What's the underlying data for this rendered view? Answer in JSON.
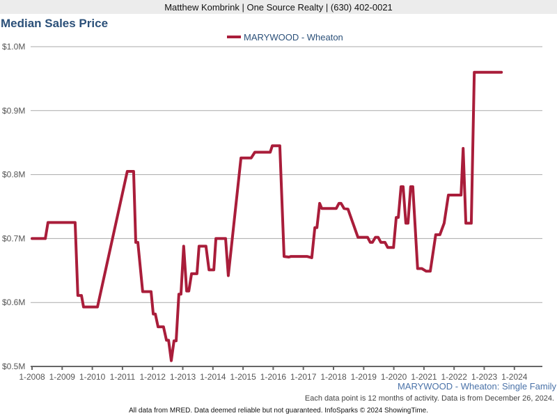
{
  "header": {
    "text": "Matthew Kombrink | One Source Realty | (630) 402-0021"
  },
  "chart_title": "Median Sales Price",
  "source_label": "MARYWOOD - Wheaton: Single Family",
  "note": "Each data point is 12 months of activity. Data is from December 26, 2024.",
  "footer": "All data from MRED. Data deemed reliable but not guaranteed. InfoSparks © 2024 ShowingTime.",
  "chart_data": {
    "type": "line",
    "title": "Median Sales Price",
    "xlabel": "",
    "ylabel": "",
    "ylim": [
      500000,
      1000000
    ],
    "xlim": [
      2008,
      2025.0
    ],
    "grid": true,
    "legend_position": "top-center",
    "y_ticks": [
      {
        "value": 500000,
        "label": "$0.5M"
      },
      {
        "value": 600000,
        "label": "$0.6M"
      },
      {
        "value": 700000,
        "label": "$0.7M"
      },
      {
        "value": 800000,
        "label": "$0.8M"
      },
      {
        "value": 900000,
        "label": "$0.9M"
      },
      {
        "value": 1000000,
        "label": "$1.0M"
      }
    ],
    "x_ticks": [
      {
        "value": 2008,
        "label": "1-2008"
      },
      {
        "value": 2009,
        "label": "1-2009"
      },
      {
        "value": 2010,
        "label": "1-2010"
      },
      {
        "value": 2011,
        "label": "1-2011"
      },
      {
        "value": 2012,
        "label": "1-2012"
      },
      {
        "value": 2013,
        "label": "1-2013"
      },
      {
        "value": 2014,
        "label": "1-2014"
      },
      {
        "value": 2015,
        "label": "1-2015"
      },
      {
        "value": 2016,
        "label": "1-2016"
      },
      {
        "value": 2017,
        "label": "1-2017"
      },
      {
        "value": 2018,
        "label": "1-2018"
      },
      {
        "value": 2019,
        "label": "1-2019"
      },
      {
        "value": 2020,
        "label": "1-2020"
      },
      {
        "value": 2021,
        "label": "1-2021"
      },
      {
        "value": 2022,
        "label": "1-2022"
      },
      {
        "value": 2023,
        "label": "1-2023"
      },
      {
        "value": 2024,
        "label": "1-2024"
      }
    ],
    "series": [
      {
        "name": "MARYWOOD - Wheaton",
        "color": "#a91d3a",
        "points": [
          [
            2008.0,
            700000
          ],
          [
            2008.44,
            700000
          ],
          [
            2008.53,
            725000
          ],
          [
            2009.43,
            725000
          ],
          [
            2009.52,
            611000
          ],
          [
            2009.64,
            611000
          ],
          [
            2009.71,
            593000
          ],
          [
            2010.17,
            593000
          ],
          [
            2011.16,
            805000
          ],
          [
            2011.37,
            805000
          ],
          [
            2011.44,
            694000
          ],
          [
            2011.51,
            694000
          ],
          [
            2011.67,
            617000
          ],
          [
            2011.95,
            617000
          ],
          [
            2012.02,
            582000
          ],
          [
            2012.09,
            582000
          ],
          [
            2012.18,
            562000
          ],
          [
            2012.36,
            562000
          ],
          [
            2012.46,
            541000
          ],
          [
            2012.53,
            541000
          ],
          [
            2012.62,
            509000
          ],
          [
            2012.71,
            540000
          ],
          [
            2012.78,
            540000
          ],
          [
            2012.87,
            613000
          ],
          [
            2012.94,
            613000
          ],
          [
            2013.03,
            688000
          ],
          [
            2013.13,
            618000
          ],
          [
            2013.2,
            618000
          ],
          [
            2013.29,
            645000
          ],
          [
            2013.47,
            645000
          ],
          [
            2013.54,
            688000
          ],
          [
            2013.77,
            688000
          ],
          [
            2013.87,
            651000
          ],
          [
            2014.03,
            651000
          ],
          [
            2014.1,
            700000
          ],
          [
            2014.42,
            700000
          ],
          [
            2014.51,
            642000
          ],
          [
            2014.93,
            826000
          ],
          [
            2015.27,
            826000
          ],
          [
            2015.39,
            835000
          ],
          [
            2015.9,
            835000
          ],
          [
            2015.97,
            845000
          ],
          [
            2016.22,
            845000
          ],
          [
            2016.36,
            672000
          ],
          [
            2016.52,
            671000
          ],
          [
            2016.59,
            672000
          ],
          [
            2017.12,
            672000
          ],
          [
            2017.28,
            670000
          ],
          [
            2017.38,
            717000
          ],
          [
            2017.45,
            717000
          ],
          [
            2017.54,
            755000
          ],
          [
            2017.61,
            747000
          ],
          [
            2018.09,
            747000
          ],
          [
            2018.18,
            755000
          ],
          [
            2018.25,
            755000
          ],
          [
            2018.35,
            747000
          ],
          [
            2018.48,
            746000
          ],
          [
            2018.81,
            702000
          ],
          [
            2019.13,
            702000
          ],
          [
            2019.22,
            694000
          ],
          [
            2019.29,
            694000
          ],
          [
            2019.39,
            702000
          ],
          [
            2019.48,
            702000
          ],
          [
            2019.57,
            694000
          ],
          [
            2019.71,
            694000
          ],
          [
            2019.8,
            686000
          ],
          [
            2019.99,
            686000
          ],
          [
            2020.08,
            733000
          ],
          [
            2020.15,
            733000
          ],
          [
            2020.24,
            781000
          ],
          [
            2020.31,
            781000
          ],
          [
            2020.4,
            724000
          ],
          [
            2020.47,
            724000
          ],
          [
            2020.56,
            781000
          ],
          [
            2020.63,
            781000
          ],
          [
            2020.79,
            653000
          ],
          [
            2020.93,
            653000
          ],
          [
            2021.07,
            649000
          ],
          [
            2021.21,
            649000
          ],
          [
            2021.39,
            706000
          ],
          [
            2021.53,
            706000
          ],
          [
            2021.67,
            724000
          ],
          [
            2021.81,
            768000
          ],
          [
            2022.23,
            768000
          ],
          [
            2022.3,
            841000
          ],
          [
            2022.39,
            724000
          ],
          [
            2022.57,
            724000
          ],
          [
            2022.67,
            960000
          ],
          [
            2023.57,
            960000
          ]
        ]
      }
    ]
  }
}
